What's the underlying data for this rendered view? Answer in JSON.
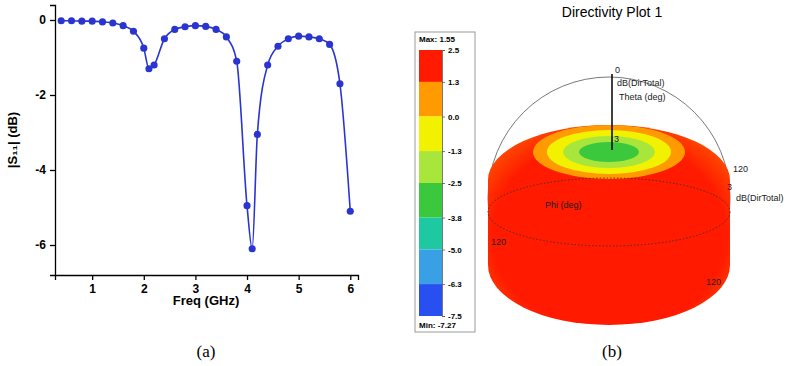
{
  "chart_data": [
    {
      "type": "line",
      "caption": "(a)",
      "x_label": "Freq (GHz)",
      "y_label": "|S₁₁| (dB)",
      "x": [
        0.4,
        0.6,
        0.8,
        1.0,
        1.2,
        1.4,
        1.6,
        1.8,
        2.0,
        2.1,
        2.2,
        2.4,
        2.6,
        2.8,
        3.0,
        3.2,
        3.4,
        3.6,
        3.8,
        4.0,
        4.1,
        4.2,
        4.4,
        4.6,
        4.8,
        5.0,
        5.2,
        5.4,
        5.6,
        5.8,
        6.0
      ],
      "values": [
        -0.02,
        -0.02,
        -0.03,
        -0.03,
        -0.05,
        -0.08,
        -0.15,
        -0.3,
        -0.75,
        -1.3,
        -1.2,
        -0.5,
        -0.25,
        -0.18,
        -0.15,
        -0.17,
        -0.25,
        -0.45,
        -1.1,
        -4.95,
        -6.1,
        -3.05,
        -1.2,
        -0.7,
        -0.5,
        -0.43,
        -0.45,
        -0.5,
        -0.65,
        -1.7,
        -5.1
      ],
      "color": "#2a35d0",
      "marker": "circle",
      "xlim": [
        0.28,
        6.15
      ],
      "ylim": [
        -6.8,
        0.4
      ],
      "xticks": [
        1,
        2,
        3,
        4,
        5,
        6
      ],
      "yticks": [
        0,
        -2,
        -4,
        -6
      ]
    },
    {
      "type": "3d_pattern",
      "title": "Directivity Plot 1",
      "caption": "(b)",
      "colorbar": {
        "ticks": [
          2.5,
          1.3,
          {
            "value": 0,
            "label": "0.0"
          },
          -1.3,
          -2.5,
          -3.8,
          {
            "value": -5,
            "label": "-5.0"
          },
          -6.3,
          -7.5
        ],
        "colors": [
          "#ff1a00",
          "#ff9a00",
          "#f2f200",
          "#a8e63c",
          "#3cc83c",
          "#1ec8a0",
          "#3aa0e6",
          "#2850f0"
        ],
        "max": {
          "value": 1.55,
          "label": "Max: 1.55"
        },
        "min": {
          "value": -7.27,
          "label": "Min: -7.27"
        }
      },
      "annotations": [
        "0",
        "dB(DirTotal)",
        "Theta (deg)",
        "3",
        "120",
        "3",
        "dB(DirTotal)",
        "Phi (deg)",
        "120",
        "120"
      ]
    }
  ]
}
